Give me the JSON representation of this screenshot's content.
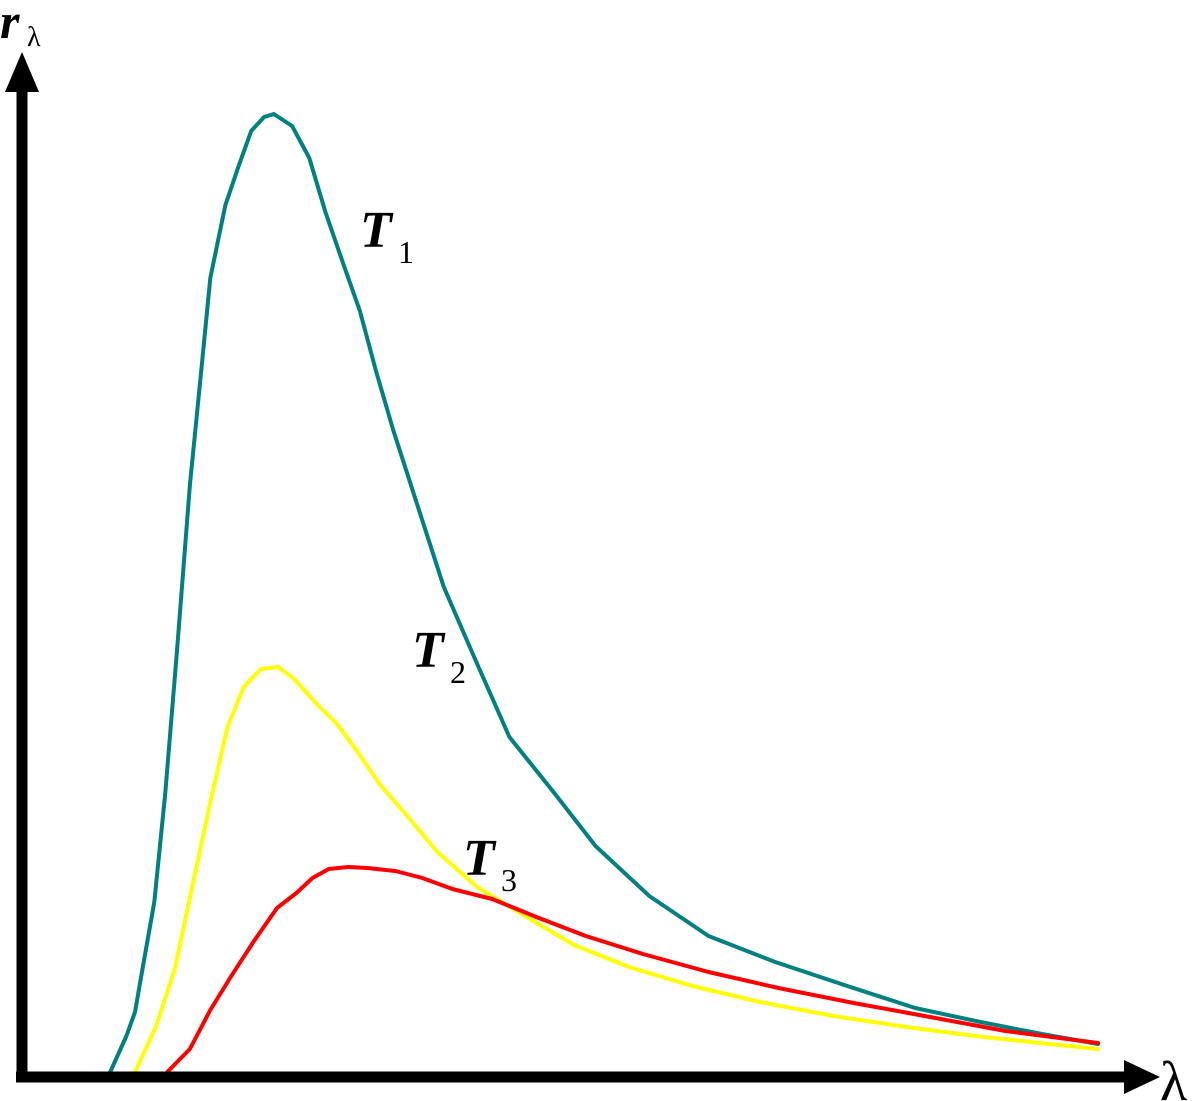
{
  "chart_data": {
    "type": "line",
    "title": "",
    "xlabel": "λ",
    "ylabel_main": "r",
    "ylabel_sub": "λ",
    "xlim": [
      0,
      100
    ],
    "ylim": [
      0,
      100
    ],
    "grid": false,
    "legend": "none",
    "series": [
      {
        "label_main": "T",
        "label_sub": "1",
        "color": "#008080",
        "x": [
          8.2,
          9.7,
          10.5,
          11.2,
          12.3,
          13.3,
          14.4,
          15.6,
          16.7,
          17.5,
          18.9,
          20.1,
          21.3,
          22.5,
          23.4,
          25.1,
          26.7,
          28.2,
          29.7,
          31.4,
          32.9,
          34.5,
          36.8,
          39.2,
          42.1,
          45.3,
          49.4,
          53.3,
          58.3,
          63.8,
          70.0,
          76.7,
          83.0,
          89.1,
          94.8,
          100.0
        ],
        "y": [
          0,
          3.6,
          6.0,
          10.3,
          17.0,
          27.7,
          42.0,
          58.7,
          70.6,
          79.4,
          86.7,
          90.5,
          94.1,
          95.5,
          95.8,
          94.6,
          91.4,
          86.0,
          81.3,
          76.1,
          70.1,
          64.2,
          56.5,
          48.5,
          41.3,
          33.5,
          28.0,
          22.6,
          17.6,
          13.6,
          11.0,
          8.6,
          6.4,
          5.0,
          3.8,
          2.8
        ]
      },
      {
        "label_main": "T",
        "label_sub": "2",
        "color": "#ffff00",
        "x": [
          10.5,
          12.4,
          14.2,
          15.7,
          17.5,
          19.1,
          20.6,
          22.2,
          23.8,
          25.3,
          27.3,
          29.2,
          31.2,
          33.3,
          35.8,
          38.6,
          42.3,
          46.6,
          51.3,
          56.4,
          62.3,
          68.6,
          75.4,
          82.2,
          88.6,
          94.6,
          100.0
        ],
        "y": [
          0,
          4.4,
          10.3,
          17.9,
          27.0,
          34.5,
          38.5,
          40.3,
          40.5,
          39.3,
          36.9,
          34.9,
          32.0,
          28.7,
          25.6,
          22.0,
          18.5,
          15.7,
          12.7,
          10.5,
          8.6,
          7.0,
          5.6,
          4.5,
          3.6,
          2.9,
          2.3
        ]
      },
      {
        "label_main": "T",
        "label_sub": "3",
        "color": "#ff0000",
        "x": [
          13.5,
          15.6,
          17.5,
          19.4,
          21.5,
          23.7,
          25.5,
          27.0,
          28.5,
          30.3,
          32.1,
          34.7,
          37.2,
          40.0,
          43.7,
          47.8,
          52.4,
          57.7,
          63.8,
          70.3,
          77.3,
          84.4,
          91.4,
          100.0
        ],
        "y": [
          0,
          2.3,
          6.2,
          9.5,
          13.0,
          16.4,
          17.9,
          19.4,
          20.3,
          20.5,
          20.4,
          20.1,
          19.4,
          18.3,
          17.3,
          15.5,
          13.6,
          11.8,
          10.0,
          8.4,
          6.9,
          5.5,
          4.1,
          2.9
        ]
      }
    ]
  }
}
